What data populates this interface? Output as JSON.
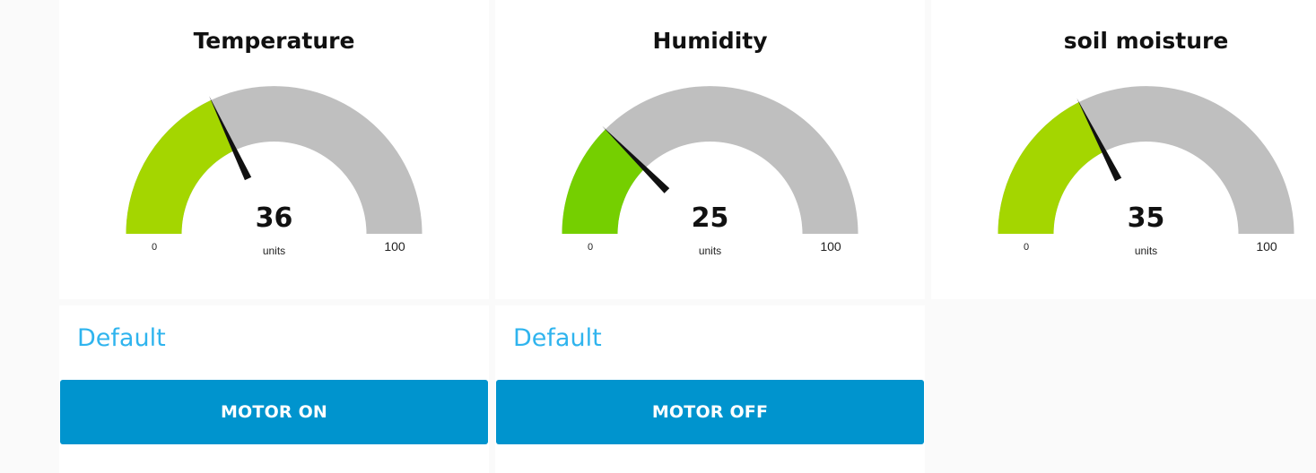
{
  "gauges": [
    {
      "title": "Temperature",
      "value": 36,
      "display": "36",
      "units": "units",
      "min": 0,
      "max": 100,
      "min_label": "0",
      "max_label": "100",
      "fill_color": "#a4d600",
      "track_color": "#bfbfbf"
    },
    {
      "title": "Humidity",
      "value": 25,
      "display": "25",
      "units": "units",
      "min": 0,
      "max": 100,
      "min_label": "0",
      "max_label": "100",
      "fill_color": "#75cf00",
      "track_color": "#bfbfbf"
    },
    {
      "title": "soil moisture",
      "value": 35,
      "display": "35",
      "units": "units",
      "min": 0,
      "max": 100,
      "min_label": "0",
      "max_label": "100",
      "fill_color": "#a4d600",
      "track_color": "#bfbfbf"
    }
  ],
  "controls": [
    {
      "label": "Default",
      "button_label": "MOTOR ON"
    },
    {
      "label": "Default",
      "button_label": "MOTOR OFF"
    }
  ],
  "colors": {
    "background": "#fafafa",
    "card": "#ffffff",
    "accent_text": "#2fb4ee",
    "button": "#0094ce",
    "needle": "#111111"
  }
}
